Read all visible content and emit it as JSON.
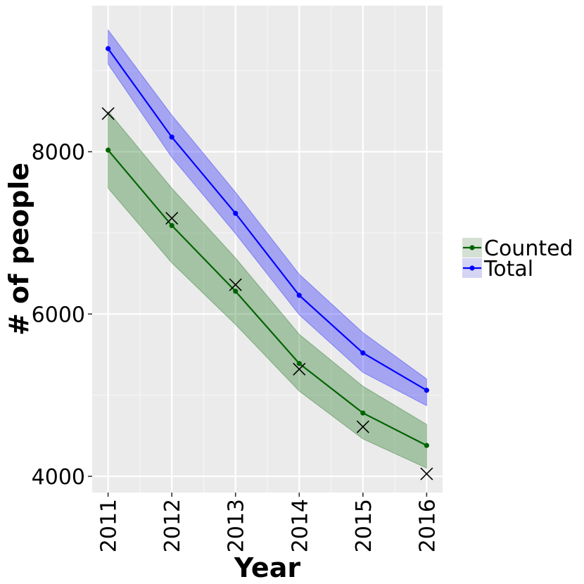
{
  "chart_data": {
    "type": "line",
    "xlabel": "Year",
    "ylabel": "# of people",
    "x": [
      2011,
      2012,
      2013,
      2014,
      2015,
      2016
    ],
    "x_tick_labels": [
      "2011",
      "2012",
      "2013",
      "2014",
      "2015",
      "2016"
    ],
    "y_ticks": [
      4000,
      6000,
      8000
    ],
    "y_tick_labels": [
      "4000",
      "6000",
      "8000"
    ],
    "xlim": [
      2010.75,
      2016.25
    ],
    "ylim": [
      3800,
      9800
    ],
    "grid": true,
    "legend_position": "right",
    "series": [
      {
        "name": "Counted",
        "color": "#006400",
        "values": [
          8020,
          7090,
          6280,
          5390,
          4780,
          4380
        ],
        "lower": [
          7550,
          6630,
          5870,
          5050,
          4460,
          4100
        ],
        "upper": [
          8500,
          7550,
          6690,
          5750,
          5110,
          4640
        ]
      },
      {
        "name": "Total",
        "color": "#0000ff",
        "values": [
          9270,
          8180,
          7240,
          6230,
          5520,
          5060
        ],
        "lower": [
          9080,
          7930,
          6990,
          5990,
          5280,
          4870
        ],
        "upper": [
          9500,
          8450,
          7500,
          6490,
          5770,
          5200
        ]
      }
    ],
    "observed": {
      "marker": "x",
      "values": [
        8470,
        7180,
        6360,
        5320,
        4610,
        4030
      ]
    }
  }
}
